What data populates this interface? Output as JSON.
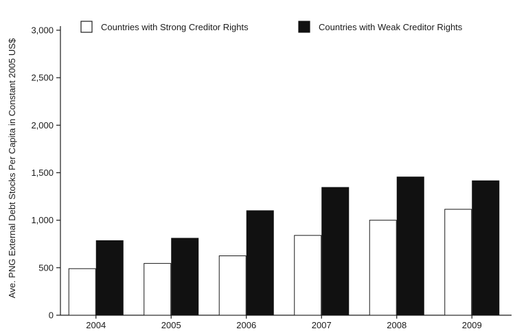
{
  "chart_data": {
    "type": "bar",
    "title": "",
    "xlabel": "",
    "ylabel": "Ave. PNG External Debt Stocks Per Capita in Constant 2005 US$",
    "categories": [
      "2004",
      "2005",
      "2006",
      "2007",
      "2008",
      "2009"
    ],
    "series": [
      {
        "name": "Countries with Strong Creditor Rights",
        "fill": "#ffffff",
        "stroke": "#1a1a1a",
        "values": [
          490,
          545,
          625,
          840,
          1000,
          1115
        ]
      },
      {
        "name": "Countries with Weak Creditor Rights",
        "fill": "#111111",
        "stroke": "#111111",
        "values": [
          785,
          810,
          1100,
          1345,
          1455,
          1415
        ]
      }
    ],
    "ylim": [
      0,
      3000
    ],
    "yticks": [
      0,
      500,
      1000,
      1500,
      2000,
      2500,
      3000
    ],
    "ytick_labels": [
      "0",
      "500",
      "1,000",
      "1,500",
      "2,000",
      "2,500",
      "3,000"
    ],
    "grid": false,
    "legend_position": "top"
  }
}
